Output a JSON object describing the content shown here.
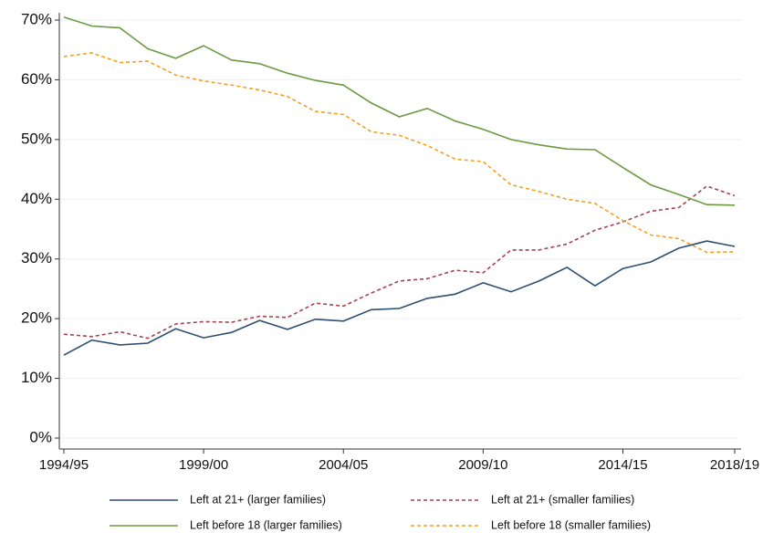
{
  "chart_data": {
    "type": "line",
    "categories": [
      "1994/95",
      null,
      null,
      null,
      null,
      "1999/00",
      null,
      null,
      null,
      null,
      "2004/05",
      null,
      null,
      null,
      null,
      "2009/10",
      null,
      null,
      null,
      null,
      "2014/15",
      null,
      null,
      null,
      "2018/19"
    ],
    "series": [
      {
        "name": "Left at 21+ (larger families)",
        "color": "#2e4f70",
        "dash": false,
        "values": [
          13.9,
          16.4,
          15.6,
          15.9,
          18.3,
          16.8,
          17.7,
          19.7,
          18.2,
          19.9,
          19.6,
          21.5,
          21.7,
          23.4,
          24.1,
          26.0,
          24.5,
          26.3,
          28.6,
          25.5,
          28.4,
          29.5,
          31.8,
          33.0,
          32.1
        ]
      },
      {
        "name": "Left at 21+ (smaller families)",
        "color": "#a3434e",
        "dash": true,
        "values": [
          17.4,
          17.0,
          17.8,
          16.7,
          19.1,
          19.5,
          19.4,
          20.4,
          20.2,
          22.6,
          22.1,
          24.3,
          26.3,
          26.7,
          28.1,
          27.7,
          31.5,
          31.5,
          32.5,
          34.8,
          36.2,
          38.0,
          38.6,
          42.2,
          40.6
        ]
      },
      {
        "name": "Left before 18 (larger families)",
        "color": "#6b9a3f",
        "dash": false,
        "values": [
          70.5,
          69.0,
          68.7,
          65.2,
          63.6,
          65.7,
          63.3,
          62.7,
          61.1,
          59.9,
          59.1,
          56.1,
          53.8,
          55.2,
          53.1,
          51.7,
          50.0,
          49.1,
          48.4,
          48.3,
          45.3,
          42.4,
          40.8,
          39.1,
          39.0
        ]
      },
      {
        "name": "Left before 18 (smaller families)",
        "color": "#f4a11d",
        "dash": true,
        "values": [
          63.9,
          64.5,
          62.9,
          63.1,
          60.8,
          59.8,
          59.1,
          58.3,
          57.2,
          54.7,
          54.2,
          51.3,
          50.7,
          49.0,
          46.7,
          46.3,
          42.4,
          41.3,
          40.0,
          39.3,
          36.4,
          34.0,
          33.4,
          31.1,
          31.2
        ]
      }
    ],
    "ylim": [
      0,
      70
    ],
    "yticks": [
      {
        "value": 0,
        "label": "0%"
      },
      {
        "value": 10,
        "label": "10%"
      },
      {
        "value": 20,
        "label": "20%"
      },
      {
        "value": 30,
        "label": "30%"
      },
      {
        "value": 40,
        "label": "40%"
      },
      {
        "value": 50,
        "label": "50%"
      },
      {
        "value": 60,
        "label": "60%"
      },
      {
        "value": 70,
        "label": "70%"
      }
    ],
    "grid": true,
    "legend": "bottom"
  }
}
